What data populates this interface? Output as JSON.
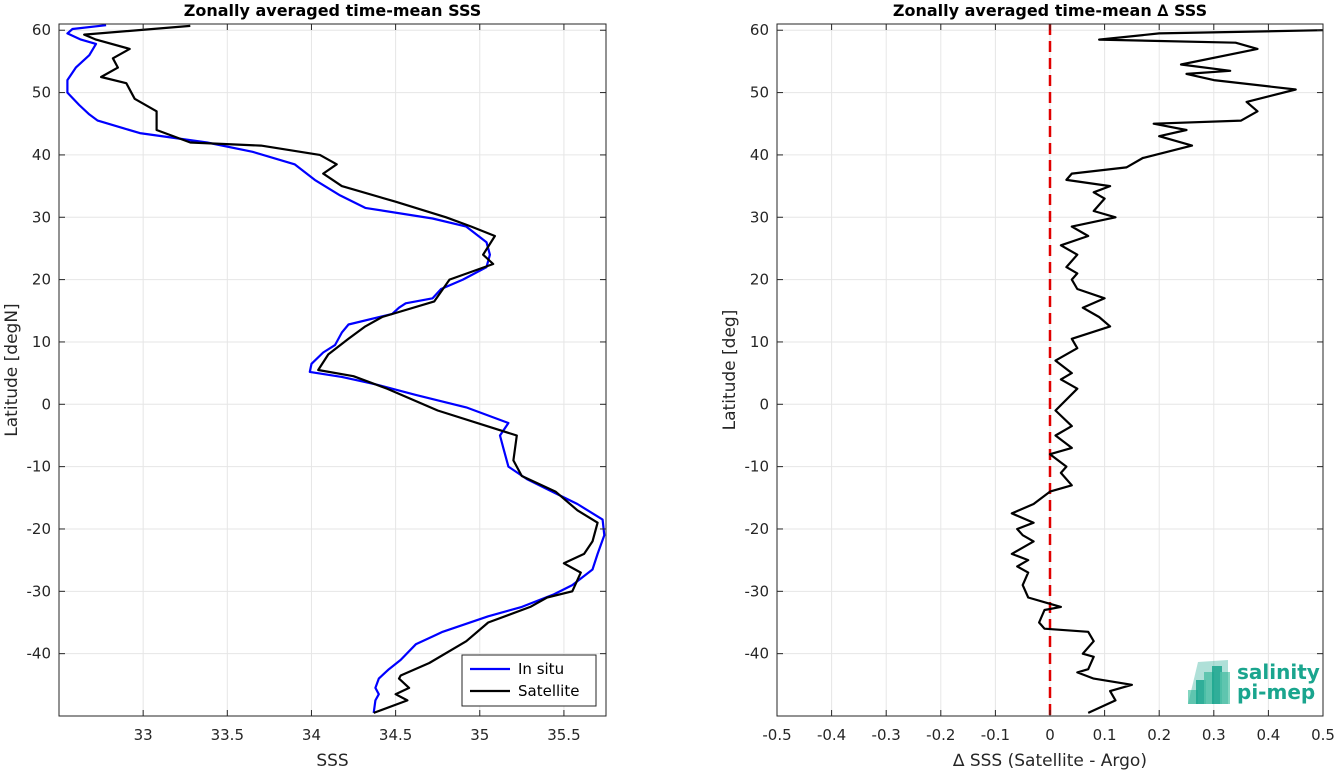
{
  "colors": {
    "insitu": "#0000ff",
    "satellite": "#000000",
    "zero_line": "#e00000",
    "grid": "#e6e6e6",
    "logo_primary": "#1aa58e",
    "logo_secondary": "#6fcfb6"
  },
  "logo": {
    "line1": "salinity",
    "line2": "pi-mep"
  },
  "chart_data": [
    {
      "type": "line",
      "title": "Zonally averaged time-mean SSS",
      "xlabel": "SSS",
      "ylabel": "Latitude [degN]",
      "xlim": [
        32.5,
        35.75
      ],
      "ylim": [
        -50,
        61
      ],
      "xticks": [
        33,
        33.5,
        34,
        34.5,
        35,
        35.5
      ],
      "xtick_labels": [
        "33",
        "33.5",
        "34",
        "34.5",
        "35",
        "35.5"
      ],
      "yticks": [
        -40,
        -30,
        -20,
        -10,
        0,
        10,
        20,
        30,
        40,
        50,
        60
      ],
      "ytick_labels": [
        "-40",
        "-30",
        "-20",
        "-10",
        "0",
        "10",
        "20",
        "30",
        "40",
        "50",
        "60"
      ],
      "grid": true,
      "legend": {
        "position": "bottom-right",
        "entries": [
          "In situ",
          "Satellite"
        ]
      },
      "series": [
        {
          "name": "In situ",
          "color_key": "insitu",
          "points": [
            [
              34.37,
              -49.5
            ],
            [
              34.38,
              -47.5
            ],
            [
              34.4,
              -46.5
            ],
            [
              34.38,
              -45.5
            ],
            [
              34.4,
              -44
            ],
            [
              34.46,
              -42.5
            ],
            [
              34.53,
              -41
            ],
            [
              34.62,
              -38.5
            ],
            [
              34.78,
              -36.5
            ],
            [
              35.05,
              -34
            ],
            [
              35.25,
              -32.5
            ],
            [
              35.44,
              -30.5
            ],
            [
              35.55,
              -29
            ],
            [
              35.67,
              -26.5
            ],
            [
              35.7,
              -24
            ],
            [
              35.74,
              -21
            ],
            [
              35.73,
              -18.5
            ],
            [
              35.58,
              -16
            ],
            [
              35.43,
              -14
            ],
            [
              35.28,
              -12
            ],
            [
              35.17,
              -10
            ],
            [
              35.14,
              -7
            ],
            [
              35.12,
              -5
            ],
            [
              35.17,
              -3
            ],
            [
              34.92,
              -0.5
            ],
            [
              34.62,
              1.5
            ],
            [
              34.38,
              3.2
            ],
            [
              34.18,
              4.4
            ],
            [
              33.99,
              5.2
            ],
            [
              34.0,
              6.5
            ],
            [
              34.07,
              8.3
            ],
            [
              34.14,
              9.5
            ],
            [
              34.18,
              11.5
            ],
            [
              34.22,
              12.8
            ],
            [
              34.48,
              14.5
            ],
            [
              34.52,
              15.5
            ],
            [
              34.56,
              16.2
            ],
            [
              34.72,
              17
            ],
            [
              34.77,
              18.5
            ],
            [
              34.9,
              20
            ],
            [
              35.04,
              22
            ],
            [
              35.06,
              24
            ],
            [
              35.04,
              26
            ],
            [
              34.92,
              28.5
            ],
            [
              34.72,
              29.8
            ],
            [
              34.32,
              31.5
            ],
            [
              34.17,
              33.5
            ],
            [
              34.02,
              36
            ],
            [
              33.9,
              38.5
            ],
            [
              33.65,
              40.5
            ],
            [
              33.38,
              42
            ],
            [
              32.98,
              43.5
            ],
            [
              32.73,
              45.5
            ],
            [
              32.68,
              46.5
            ],
            [
              32.62,
              48
            ],
            [
              32.55,
              50
            ],
            [
              32.55,
              52
            ],
            [
              32.6,
              54
            ],
            [
              32.68,
              56
            ],
            [
              32.72,
              57.8
            ],
            [
              32.63,
              58.5
            ],
            [
              32.55,
              59.5
            ],
            [
              32.58,
              60.2
            ],
            [
              32.78,
              60.8
            ]
          ]
        },
        {
          "name": "Satellite",
          "color_key": "satellite",
          "points": [
            [
              34.37,
              -49.5
            ],
            [
              34.57,
              -47.5
            ],
            [
              34.5,
              -46.5
            ],
            [
              34.58,
              -45.5
            ],
            [
              34.52,
              -44
            ],
            [
              34.53,
              -43.5
            ],
            [
              34.7,
              -41.5
            ],
            [
              34.92,
              -38
            ],
            [
              35.05,
              -35
            ],
            [
              35.3,
              -32.5
            ],
            [
              35.4,
              -31
            ],
            [
              35.55,
              -30
            ],
            [
              35.6,
              -27
            ],
            [
              35.5,
              -25.5
            ],
            [
              35.62,
              -24
            ],
            [
              35.67,
              -22
            ],
            [
              35.7,
              -19
            ],
            [
              35.58,
              -17
            ],
            [
              35.45,
              -14
            ],
            [
              35.25,
              -11.5
            ],
            [
              35.2,
              -9
            ],
            [
              35.22,
              -5
            ],
            [
              34.75,
              -1
            ],
            [
              34.45,
              2.5
            ],
            [
              34.25,
              4.5
            ],
            [
              34.04,
              5.5
            ],
            [
              34.1,
              8
            ],
            [
              34.22,
              10.5
            ],
            [
              34.32,
              12.5
            ],
            [
              34.42,
              14
            ],
            [
              34.73,
              16.5
            ],
            [
              34.82,
              20
            ],
            [
              35.08,
              22.5
            ],
            [
              35.02,
              24
            ],
            [
              35.09,
              27
            ],
            [
              34.95,
              28.5
            ],
            [
              34.8,
              30
            ],
            [
              34.5,
              32.5
            ],
            [
              34.18,
              35
            ],
            [
              34.07,
              37
            ],
            [
              34.15,
              38.5
            ],
            [
              34.05,
              40
            ],
            [
              33.7,
              41.5
            ],
            [
              33.28,
              42
            ],
            [
              33.08,
              44
            ],
            [
              33.08,
              47
            ],
            [
              32.95,
              49
            ],
            [
              32.9,
              51.5
            ],
            [
              32.75,
              52.5
            ],
            [
              32.85,
              54
            ],
            [
              32.82,
              55.5
            ],
            [
              32.92,
              57
            ],
            [
              32.72,
              58.5
            ],
            [
              32.65,
              59.3
            ],
            [
              33.28,
              60.7
            ]
          ]
        }
      ]
    },
    {
      "type": "line",
      "title": "Zonally averaged time-mean ∆ SSS",
      "xlabel": "∆ SSS (Satellite - Argo)",
      "ylabel": "Latitude [deg]",
      "xlim": [
        -0.5,
        0.5
      ],
      "ylim": [
        -50,
        61
      ],
      "xticks": [
        -0.5,
        -0.4,
        -0.3,
        -0.2,
        -0.1,
        0,
        0.1,
        0.2,
        0.3,
        0.4,
        0.5
      ],
      "xtick_labels": [
        "-0.5",
        "-0.4",
        "-0.3",
        "-0.2",
        "-0.1",
        "0",
        "0.1",
        "0.2",
        "0.3",
        "0.4",
        "0.5"
      ],
      "yticks": [
        -40,
        -30,
        -20,
        -10,
        0,
        10,
        20,
        30,
        40,
        50,
        60
      ],
      "ytick_labels": [
        "-40",
        "-30",
        "-20",
        "-10",
        "0",
        "10",
        "20",
        "30",
        "40",
        "50",
        "60"
      ],
      "grid": true,
      "reference_line": {
        "x": 0,
        "style": "dashed",
        "color_key": "zero_line"
      },
      "series": [
        {
          "color_key": "satellite",
          "points": [
            [
              0.07,
              -49.5
            ],
            [
              0.12,
              -47.5
            ],
            [
              0.11,
              -46
            ],
            [
              0.15,
              -45
            ],
            [
              0.08,
              -44
            ],
            [
              0.05,
              -43
            ],
            [
              0.07,
              -42.5
            ],
            [
              0.08,
              -40.5
            ],
            [
              0.06,
              -40
            ],
            [
              0.08,
              -38
            ],
            [
              0.07,
              -36.5
            ],
            [
              -0.01,
              -36
            ],
            [
              -0.02,
              -35
            ],
            [
              -0.01,
              -33
            ],
            [
              0.02,
              -32.5
            ],
            [
              0.0,
              -32
            ],
            [
              -0.04,
              -31
            ],
            [
              -0.05,
              -29
            ],
            [
              -0.04,
              -27
            ],
            [
              -0.06,
              -26
            ],
            [
              -0.04,
              -25
            ],
            [
              -0.07,
              -24
            ],
            [
              -0.03,
              -22
            ],
            [
              -0.05,
              -21
            ],
            [
              -0.06,
              -20
            ],
            [
              -0.03,
              -19
            ],
            [
              -0.07,
              -17.5
            ],
            [
              -0.03,
              -16
            ],
            [
              0.0,
              -14
            ],
            [
              0.04,
              -13
            ],
            [
              0.02,
              -11
            ],
            [
              0.03,
              -10
            ],
            [
              0.0,
              -8
            ],
            [
              0.04,
              -7
            ],
            [
              0.01,
              -5
            ],
            [
              0.04,
              -3.5
            ],
            [
              0.01,
              -1
            ],
            [
              0.05,
              2.5
            ],
            [
              0.02,
              4
            ],
            [
              0.04,
              5
            ],
            [
              0.01,
              7
            ],
            [
              0.05,
              9
            ],
            [
              0.04,
              10.5
            ],
            [
              0.11,
              12.5
            ],
            [
              0.09,
              14
            ],
            [
              0.06,
              15.5
            ],
            [
              0.1,
              17
            ],
            [
              0.05,
              18.5
            ],
            [
              0.04,
              20
            ],
            [
              0.05,
              21
            ],
            [
              0.03,
              22
            ],
            [
              0.05,
              24
            ],
            [
              0.02,
              25.5
            ],
            [
              0.07,
              27
            ],
            [
              0.04,
              28.5
            ],
            [
              0.12,
              30
            ],
            [
              0.08,
              31
            ],
            [
              0.1,
              33
            ],
            [
              0.08,
              34
            ],
            [
              0.11,
              35
            ],
            [
              0.03,
              36
            ],
            [
              0.04,
              37
            ],
            [
              0.14,
              38
            ],
            [
              0.17,
              39.5
            ],
            [
              0.26,
              41.5
            ],
            [
              0.2,
              43
            ],
            [
              0.25,
              44
            ],
            [
              0.19,
              45
            ],
            [
              0.35,
              45.5
            ],
            [
              0.38,
              47
            ],
            [
              0.36,
              48.5
            ],
            [
              0.45,
              50.5
            ],
            [
              0.3,
              52
            ],
            [
              0.25,
              53
            ],
            [
              0.33,
              53.5
            ],
            [
              0.24,
              54.5
            ],
            [
              0.38,
              57
            ],
            [
              0.34,
              58
            ],
            [
              0.09,
              58.5
            ],
            [
              0.2,
              59.5
            ],
            [
              0.5,
              60
            ]
          ]
        }
      ]
    }
  ]
}
